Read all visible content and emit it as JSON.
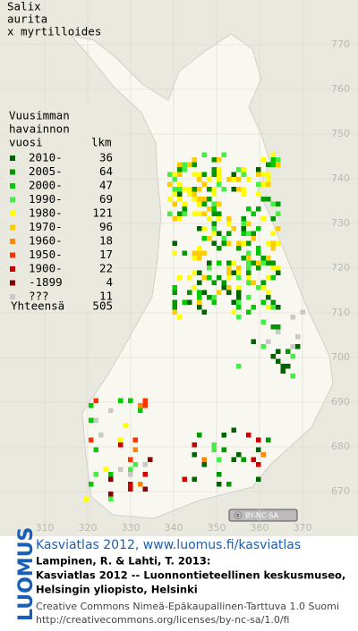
{
  "title": {
    "lines": [
      "Salix",
      "aurita",
      "x myrtilloides"
    ]
  },
  "legend": {
    "heading": [
      "Vuusimman",
      "havainnon",
      "vuosi"
    ],
    "count_heading": "lkm",
    "entries": [
      {
        "label": "2010-",
        "count": 36,
        "color": "#006400"
      },
      {
        "label": "2005-",
        "count": 64,
        "color": "#009900"
      },
      {
        "label": "2000-",
        "count": 47,
        "color": "#00cc00"
      },
      {
        "label": "1990-",
        "count": 69,
        "color": "#44ee44"
      },
      {
        "label": "1980-",
        "count": 121,
        "color": "#ffff00"
      },
      {
        "label": "1970-",
        "count": 96,
        "color": "#ffcc00"
      },
      {
        "label": "1960-",
        "count": 18,
        "color": "#ff8800"
      },
      {
        "label": "1950-",
        "count": 17,
        "color": "#ff3300"
      },
      {
        "label": "1900-",
        "count": 22,
        "color": "#cc0000"
      },
      {
        "label": "-1899",
        "count": 4,
        "color": "#880000"
      },
      {
        "label": "???",
        "count": 11,
        "color": "#c8c8c8"
      }
    ],
    "total": {
      "label": "Yhteensä",
      "count": 505
    }
  },
  "map": {
    "y_labels": [
      770,
      760,
      750,
      740,
      730,
      720,
      710,
      700,
      690,
      680,
      670
    ],
    "x_labels": [
      310,
      320,
      330,
      340,
      350,
      360,
      370
    ],
    "license_badge": "BY-NC-SA"
  },
  "footer": {
    "logo": "LUOMUS",
    "site": "Kasviatlas 2012, www.luomus.fi/kasviatlas",
    "citation": [
      "Lampinen, R. & Lahti, T. 2013:",
      "Kasviatlas 2012 -- Luonnontieteellinen keskusmuseo,",
      "Helsingin yliopisto, Helsinki"
    ],
    "license": [
      "Creative Commons Nimeä-Epäkaupallinen-Tarttuva 1.0 Suomi",
      "http://creativecommons.org/licenses/by-nc-sa/1.0/fi"
    ]
  }
}
